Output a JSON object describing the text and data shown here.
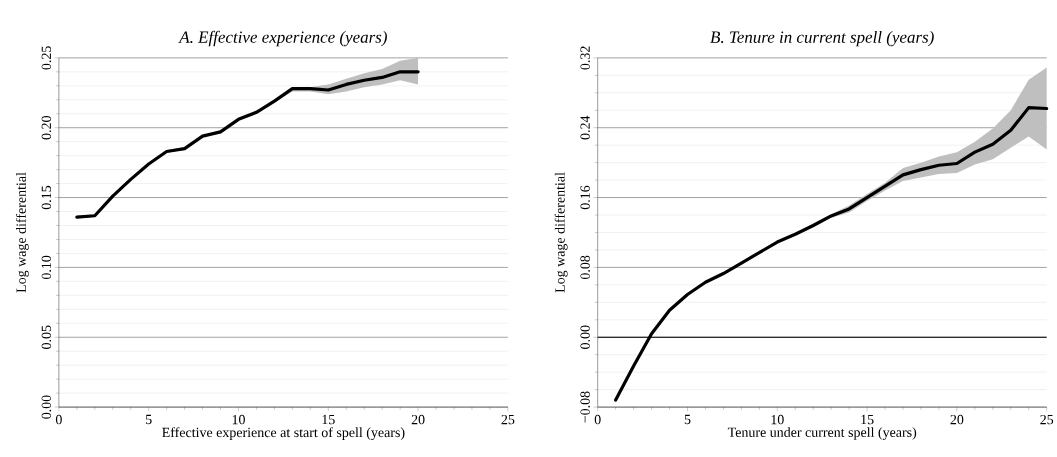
{
  "chart_data": [
    {
      "type": "line",
      "title": "A. Effective experience (years)",
      "xlabel": "Effective experience at start of spell (years)",
      "ylabel": "Log wage differential",
      "x": [
        1,
        2,
        3,
        4,
        5,
        6,
        7,
        8,
        9,
        10,
        11,
        12,
        13,
        14,
        15,
        16,
        17,
        18,
        19,
        20
      ],
      "series": [
        {
          "color": "#000000",
          "values": [
            0.136,
            0.137,
            0.151,
            0.163,
            0.174,
            0.183,
            0.185,
            0.194,
            0.197,
            0.206,
            0.211,
            0.219,
            0.228,
            0.228,
            0.227,
            0.231,
            0.234,
            0.236,
            0.24,
            0.24
          ],
          "lower": [
            0.135,
            0.136,
            0.15,
            0.162,
            0.173,
            0.182,
            0.184,
            0.193,
            0.196,
            0.205,
            0.21,
            0.218,
            0.226,
            0.226,
            0.224,
            0.226,
            0.229,
            0.231,
            0.234,
            0.231
          ],
          "upper": [
            0.137,
            0.138,
            0.152,
            0.164,
            0.175,
            0.184,
            0.186,
            0.195,
            0.198,
            0.207,
            0.212,
            0.22,
            0.229,
            0.229,
            0.231,
            0.235,
            0.239,
            0.242,
            0.248,
            0.25
          ]
        }
      ],
      "xlim": [
        0,
        25
      ],
      "xticks": [
        0,
        5,
        10,
        15,
        20,
        25
      ],
      "ylim": [
        0,
        0.25
      ],
      "yticks": [
        {
          "value": 0,
          "label": "0.00"
        },
        {
          "value": 0.05,
          "label": "0.05"
        },
        {
          "value": 0.1,
          "label": "0.10"
        },
        {
          "value": 0.15,
          "label": "0.15"
        },
        {
          "value": 0.2,
          "label": "0.20"
        },
        {
          "value": 0.25,
          "label": "0.25"
        }
      ],
      "grid": "y",
      "marker": "none",
      "line_style": "solid"
    },
    {
      "type": "line",
      "title": "B. Tenure in current spell (years)",
      "xlabel": "Tenure under current spell (years)",
      "ylabel": "Log wage differential",
      "x": [
        1,
        2,
        3,
        4,
        5,
        6,
        7,
        8,
        9,
        10,
        11,
        12,
        13,
        14,
        15,
        16,
        17,
        18,
        19,
        20,
        21,
        22,
        23,
        24,
        25
      ],
      "series": [
        {
          "color": "#000000",
          "values": [
            -0.072,
            -0.033,
            0.004,
            0.031,
            0.049,
            0.063,
            0.073,
            0.085,
            0.097,
            0.109,
            0.118,
            0.128,
            0.139,
            0.147,
            0.16,
            0.173,
            0.186,
            0.192,
            0.197,
            0.199,
            0.212,
            0.221,
            0.237,
            0.263,
            0.262
          ],
          "lower": [
            -0.073,
            -0.034,
            0.003,
            0.03,
            0.048,
            0.062,
            0.072,
            0.084,
            0.096,
            0.108,
            0.117,
            0.126,
            0.137,
            0.143,
            0.156,
            0.168,
            0.179,
            0.183,
            0.187,
            0.188,
            0.198,
            0.204,
            0.217,
            0.23,
            0.215
          ],
          "upper": [
            -0.071,
            -0.032,
            0.005,
            0.032,
            0.05,
            0.064,
            0.074,
            0.086,
            0.098,
            0.11,
            0.119,
            0.13,
            0.141,
            0.151,
            0.164,
            0.177,
            0.194,
            0.2,
            0.207,
            0.212,
            0.224,
            0.239,
            0.26,
            0.295,
            0.309
          ]
        }
      ],
      "ref_lines": [
        {
          "axis": "y",
          "value": 0,
          "color": "#000000"
        }
      ],
      "xlim": [
        0,
        25
      ],
      "xticks": [
        0,
        5,
        10,
        15,
        20,
        25
      ],
      "ylim": [
        -0.08,
        0.32
      ],
      "yticks": [
        {
          "value": -0.08,
          "label": "−0.08"
        },
        {
          "value": 0,
          "label": "0.00"
        },
        {
          "value": 0.08,
          "label": "0.08"
        },
        {
          "value": 0.16,
          "label": "0.16"
        },
        {
          "value": 0.24,
          "label": "0.24"
        },
        {
          "value": 0.32,
          "label": "0.32"
        }
      ],
      "grid": "y",
      "marker": "none",
      "line_style": "solid"
    }
  ]
}
